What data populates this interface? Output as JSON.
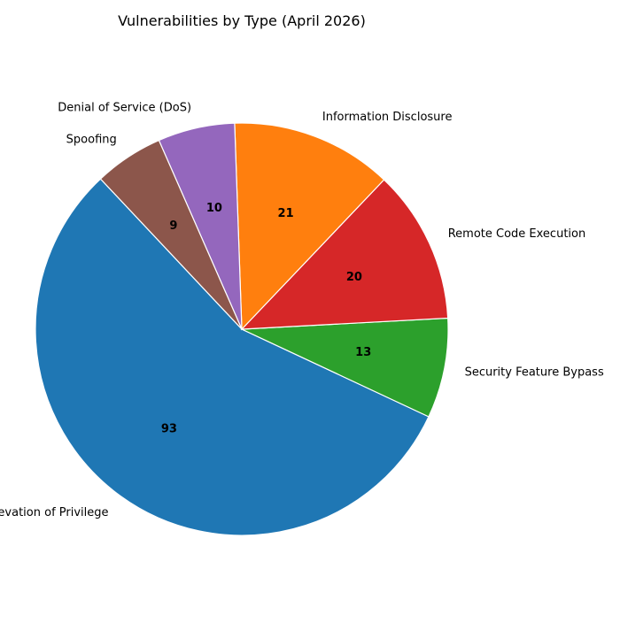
{
  "chart_data": {
    "type": "pie",
    "title": "Vulnerabilities by Type (April 2026)",
    "slices": [
      {
        "label": "Elevation of Privilege",
        "value": 93,
        "color": "#1f77b4"
      },
      {
        "label": "Security Feature Bypass",
        "value": 13,
        "color": "#2ca02c"
      },
      {
        "label": "Remote Code Execution",
        "value": 20,
        "color": "#d62728"
      },
      {
        "label": "Information Disclosure",
        "value": 21,
        "color": "#ff7f0e"
      },
      {
        "label": "Denial of Service (DoS)",
        "value": 10,
        "color": "#9467bd"
      },
      {
        "label": "Spoofing",
        "value": 9,
        "color": "#8c564b"
      }
    ],
    "legend": "none"
  }
}
